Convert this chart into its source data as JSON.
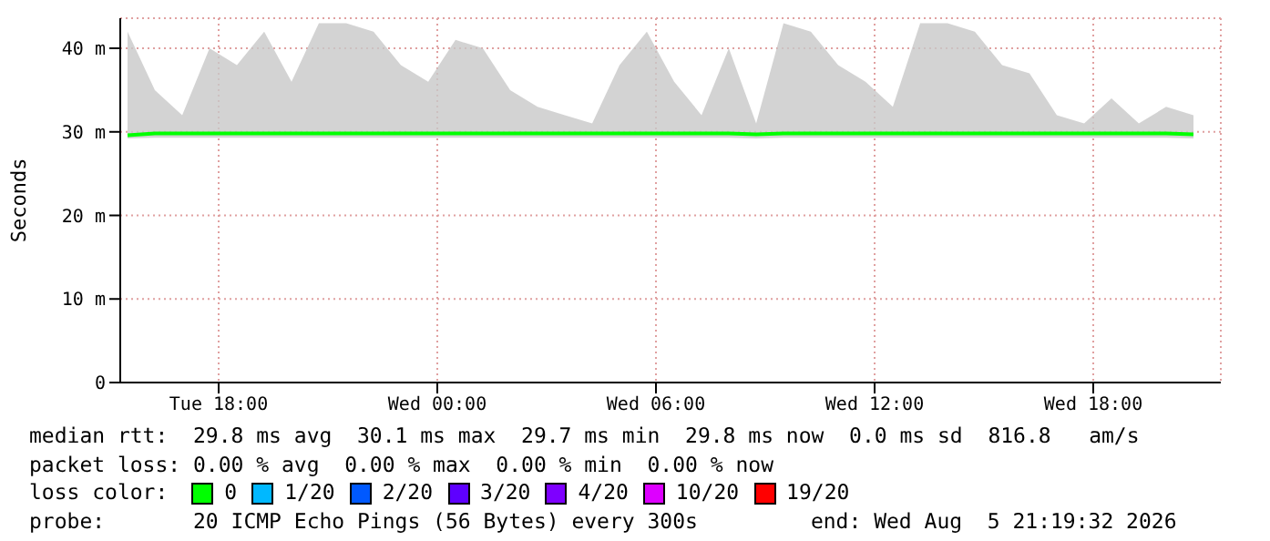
{
  "chart_data": {
    "type": "line",
    "ylabel": "Seconds",
    "x": [
      "2026-08-04T15:30",
      "2026-08-04T16:15",
      "2026-08-04T17:00",
      "2026-08-04T17:45",
      "2026-08-04T18:30",
      "2026-08-04T19:15",
      "2026-08-04T20:00",
      "2026-08-04T20:45",
      "2026-08-04T21:30",
      "2026-08-04T22:15",
      "2026-08-04T23:00",
      "2026-08-04T23:45",
      "2026-08-05T00:30",
      "2026-08-05T01:15",
      "2026-08-05T02:00",
      "2026-08-05T02:45",
      "2026-08-05T03:30",
      "2026-08-05T04:15",
      "2026-08-05T05:00",
      "2026-08-05T05:45",
      "2026-08-05T06:30",
      "2026-08-05T07:15",
      "2026-08-05T08:00",
      "2026-08-05T08:45",
      "2026-08-05T09:30",
      "2026-08-05T10:15",
      "2026-08-05T11:00",
      "2026-08-05T11:45",
      "2026-08-05T12:30",
      "2026-08-05T13:15",
      "2026-08-05T14:00",
      "2026-08-05T14:45",
      "2026-08-05T15:30",
      "2026-08-05T16:15",
      "2026-08-05T17:00",
      "2026-08-05T17:45",
      "2026-08-05T18:30",
      "2026-08-05T19:15",
      "2026-08-05T20:00",
      "2026-08-05T20:45"
    ],
    "series": [
      {
        "color": "#00ff00",
        "values": [
          29.6,
          29.8,
          29.8,
          29.8,
          29.8,
          29.8,
          29.8,
          29.8,
          29.8,
          29.8,
          29.8,
          29.8,
          29.8,
          29.8,
          29.8,
          29.8,
          29.8,
          29.8,
          29.8,
          29.8,
          29.8,
          29.8,
          29.8,
          29.7,
          29.8,
          29.8,
          29.8,
          29.8,
          29.8,
          29.8,
          29.8,
          29.8,
          29.8,
          29.8,
          29.8,
          29.8,
          29.8,
          29.8,
          29.8,
          29.7
        ],
        "lower": [
          29.2,
          29.3,
          29.3,
          29.3,
          29.3,
          29.3,
          29.3,
          29.3,
          29.3,
          29.3,
          29.3,
          29.3,
          29.3,
          29.3,
          29.3,
          29.3,
          29.3,
          29.3,
          29.3,
          29.3,
          29.3,
          29.3,
          29.3,
          29.2,
          29.3,
          29.3,
          29.3,
          29.3,
          29.3,
          29.3,
          29.3,
          29.3,
          29.3,
          29.3,
          29.3,
          29.3,
          29.3,
          29.3,
          29.3,
          29.2
        ],
        "upper": [
          42,
          35,
          32,
          40,
          38,
          42,
          36,
          43,
          43,
          42,
          38,
          36,
          41,
          40,
          35,
          33,
          32,
          31,
          38,
          42,
          36,
          32,
          40,
          31,
          43,
          42,
          38,
          36,
          33,
          43,
          43,
          42,
          38,
          37,
          32,
          31,
          34,
          31,
          33,
          32
        ]
      }
    ],
    "xlim": [
      "2026-08-04T15:18",
      "2026-08-05T21:30"
    ],
    "xticks": [
      {
        "value": "2026-08-04T18:00",
        "label": "Tue 18:00"
      },
      {
        "value": "2026-08-05T00:00",
        "label": "Wed 00:00"
      },
      {
        "value": "2026-08-05T06:00",
        "label": "Wed 06:00"
      },
      {
        "value": "2026-08-05T12:00",
        "label": "Wed 12:00"
      },
      {
        "value": "2026-08-05T18:00",
        "label": "Wed 18:00"
      }
    ],
    "ylim": [
      0,
      43.6
    ],
    "yticks": [
      0,
      {
        "value": 10,
        "label": "10 m"
      },
      {
        "value": 20,
        "label": "20 m"
      },
      {
        "value": 30,
        "label": "30 m"
      },
      {
        "value": 40,
        "label": "40 m"
      }
    ],
    "grid": true,
    "marker": "none",
    "line_style": "solid",
    "legend": false,
    "annotations": [
      "median rtt:  29.8 ms avg  30.1 ms max  29.7 ms min  29.8 ms now  0.0 ms sd  816.8   am/s",
      "packet loss: 0.00 % avg  0.00 % max  0.00 % min  0.00 % now",
      "loss color:",
      "0",
      "1/20",
      "2/20",
      "3/20",
      "4/20",
      "10/20",
      "19/20",
      "probe:       20 ICMP Echo Pings (56 Bytes) every 300s",
      "end: Wed Aug  5 21:19:32 2026"
    ]
  }
}
